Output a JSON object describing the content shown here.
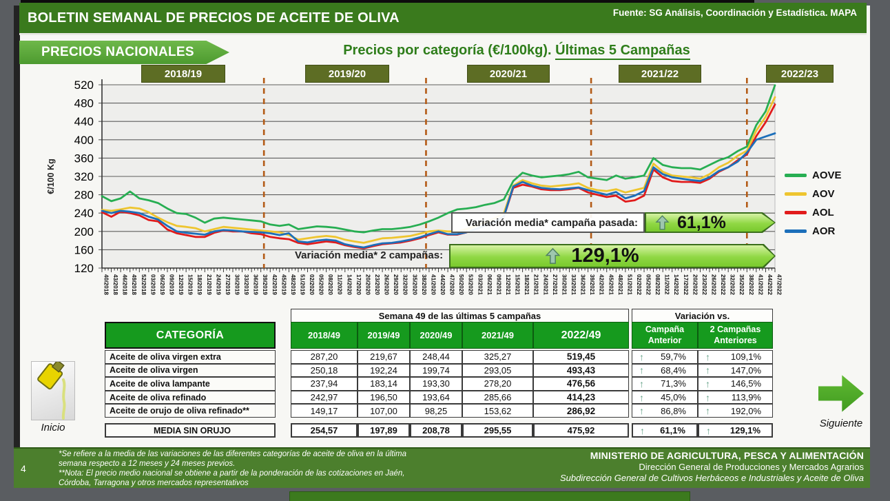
{
  "header": {
    "title": "BOLETIN SEMANAL DE PRECIOS DE ACEITE DE OLIVA",
    "source": "Fuente: SG Análisis, Coordinación y Estadística. MAPA",
    "banner": "PRECIOS NACIONALES",
    "chart_title_main": "Precios por categoría (€/100kg). ",
    "chart_title_underlined": "Últimas 5 Campañas"
  },
  "chart_data": {
    "type": "line",
    "title": "Precios por categoría (€/100kg). Últimas 5 Campañas",
    "ylabel": "€/100 Kg",
    "ylim": [
      120,
      520
    ],
    "ytick_step": 40,
    "grid": true,
    "legend_position": "right",
    "campaigns": [
      "2018/19",
      "2019/20",
      "2020/21",
      "2021/22",
      "2022/23"
    ],
    "campaign_boundaries_index": [
      17.33,
      34.67,
      52.33,
      69.0
    ],
    "x_labels": [
      "40/2018",
      "43/2018",
      "46/2018",
      "49/2018",
      "52/2018",
      "03/2019",
      "06/2019",
      "09/2019",
      "12/2019",
      "15/2019",
      "18/2019",
      "21/2019",
      "24/2019",
      "27/2019",
      "30/2019",
      "33/2019",
      "36/2019",
      "39/2019",
      "42/2019",
      "45/2019",
      "48/2019",
      "51/2019",
      "02/2020",
      "05/2020",
      "08/2020",
      "11/2020",
      "14/2020",
      "17/2020",
      "20/2020",
      "23/2020",
      "26/2020",
      "29/2020",
      "32/2020",
      "35/2020",
      "38/2020",
      "41/2020",
      "44/2020",
      "47/2020",
      "50/2020",
      "53/2020",
      "03/2021",
      "06/2021",
      "09/2021",
      "12/2021",
      "15/2021",
      "18/2021",
      "21/2021",
      "24/2021",
      "27/2021",
      "30/2021",
      "33/2021",
      "36/2021",
      "39/2021",
      "42/2021",
      "45/2021",
      "48/2021",
      "51/2021",
      "02/2022",
      "05/2022",
      "08/2022",
      "11/2022",
      "14/2022",
      "17/2022",
      "20/2022",
      "23/2022",
      "26/2022",
      "29/2022",
      "32/2022",
      "35/2022",
      "38/2022",
      "41/2022",
      "44/2022",
      "47/2022"
    ],
    "series": [
      {
        "name": "AOVE",
        "color": "#27ae52",
        "values": [
          277,
          266,
          272,
          287,
          272,
          268,
          262,
          250,
          240,
          238,
          230,
          219,
          228,
          230,
          228,
          226,
          224,
          222,
          215,
          212,
          215,
          205,
          208,
          211,
          210,
          208,
          204,
          200,
          198,
          202,
          205,
          205,
          207,
          210,
          215,
          222,
          230,
          240,
          248,
          250,
          253,
          258,
          262,
          270,
          310,
          328,
          322,
          318,
          320,
          322,
          325,
          330,
          318,
          315,
          312,
          322,
          315,
          318,
          322,
          360,
          345,
          340,
          338,
          338,
          335,
          345,
          355,
          362,
          375,
          385,
          432,
          462,
          519
        ]
      },
      {
        "name": "AOV",
        "color": "#eec52f",
        "values": [
          247,
          245,
          248,
          252,
          250,
          242,
          230,
          220,
          212,
          210,
          207,
          200,
          205,
          210,
          208,
          206,
          204,
          202,
          200,
          198,
          192,
          182,
          185,
          188,
          190,
          188,
          182,
          178,
          175,
          180,
          185,
          186,
          188,
          190,
          195,
          200,
          202,
          200,
          200,
          205,
          212,
          220,
          228,
          240,
          300,
          312,
          305,
          300,
          298,
          300,
          302,
          305,
          295,
          290,
          288,
          292,
          285,
          290,
          295,
          348,
          330,
          322,
          320,
          318,
          315,
          325,
          340,
          350,
          365,
          376,
          420,
          450,
          493
        ]
      },
      {
        "name": "AOL",
        "color": "#e11b1b",
        "values": [
          242,
          232,
          243,
          240,
          235,
          225,
          222,
          204,
          196,
          192,
          188,
          188,
          197,
          202,
          200,
          200,
          196,
          194,
          188,
          185,
          183,
          175,
          172,
          175,
          178,
          176,
          170,
          166,
          163,
          168,
          172,
          174,
          176,
          180,
          185,
          192,
          198,
          193,
          193,
          198,
          205,
          213,
          220,
          232,
          295,
          302,
          298,
          292,
          290,
          290,
          292,
          295,
          285,
          280,
          275,
          278,
          265,
          268,
          278,
          335,
          318,
          310,
          308,
          308,
          306,
          315,
          330,
          340,
          355,
          368,
          408,
          438,
          477
        ]
      },
      {
        "name": "AOR",
        "color": "#1c6fba",
        "values": [
          245,
          240,
          245,
          243,
          240,
          232,
          226,
          212,
          200,
          197,
          195,
          193,
          200,
          203,
          202,
          200,
          199,
          198,
          196,
          192,
          196,
          178,
          176,
          180,
          182,
          180,
          172,
          168,
          165,
          170,
          174,
          175,
          178,
          182,
          187,
          194,
          200,
          194,
          194,
          198,
          205,
          213,
          220,
          233,
          298,
          308,
          300,
          295,
          293,
          292,
          294,
          296,
          290,
          285,
          280,
          286,
          272,
          278,
          288,
          340,
          325,
          318,
          315,
          312,
          310,
          318,
          332,
          340,
          352,
          372,
          400,
          407,
          414
        ]
      }
    ],
    "annotations": [
      {
        "label": "Variación media* campaña pasada:",
        "value": "61,1%"
      },
      {
        "label": "Variación media* 2 campañas:",
        "value": "129,1%"
      }
    ]
  },
  "table": {
    "span_header_left": "Semana 49 de las últimas 5 campañas",
    "span_header_right": "Variación vs.",
    "category_header": "CATEGORÍA",
    "columns": [
      "2018/49",
      "2019/49",
      "2020/49",
      "2021/49",
      "2022/49"
    ],
    "var_columns": [
      "Campaña Anterior",
      "2 Campañas Anteriores"
    ],
    "rows": [
      {
        "label": "Aceite de oliva virgen extra",
        "values": [
          "287,20",
          "219,67",
          "248,44",
          "325,27",
          "519,45"
        ],
        "var1": "59,7%",
        "var2": "109,1%"
      },
      {
        "label": "Aceite de oliva virgen",
        "values": [
          "250,18",
          "192,24",
          "199,74",
          "293,05",
          "493,43"
        ],
        "var1": "68,4%",
        "var2": "147,0%"
      },
      {
        "label": "Aceite de oliva lampante",
        "values": [
          "237,94",
          "183,14",
          "193,30",
          "278,20",
          "476,56"
        ],
        "var1": "71,3%",
        "var2": "146,5%"
      },
      {
        "label": "Aceite de oliva refinado",
        "values": [
          "242,97",
          "196,50",
          "193,64",
          "285,66",
          "414,23"
        ],
        "var1": "45,0%",
        "var2": "113,9%"
      },
      {
        "label": "Aceite de orujo de oliva refinado**",
        "values": [
          "149,17",
          "107,00",
          "98,25",
          "153,62",
          "286,92"
        ],
        "var1": "86,8%",
        "var2": "192,0%"
      }
    ],
    "summary": {
      "label": "MEDIA SIN ORUJO",
      "values": [
        "254,57",
        "197,89",
        "208,78",
        "295,55",
        "475,92"
      ],
      "var1": "61,1%",
      "var2": "129,1%"
    }
  },
  "nav": {
    "inicio_label": "Inicio",
    "siguiente_label": "Siguiente"
  },
  "footer": {
    "page_number": "4",
    "note_lines": [
      "*Se refiere a la media de las variaciones de las diferentes categorías de aceite de oliva en la última",
      "semana respecto a 12 meses y 24 meses previos.",
      "**Nota: El precio medio nacional se obtiene a partir de la ponderación de las cotizaciones en Jaén,",
      "Córdoba, Tarragona y otros mercados representativos"
    ],
    "ministry_line1": "MINISTERIO DE AGRICULTURA, PESCA Y ALIMENTACIÓN",
    "ministry_line2": "Dirección General de Producciones y Mercados Agrarios",
    "ministry_line3": "Subdirección General de Cultivos Herbáceos e Industriales y Aceite de Oliva"
  },
  "colors": {
    "header_green": "#3a7a1d",
    "table_green": "#169a1e",
    "campaign_olive": "#5d6d24",
    "variation_bar_green": "#90d844",
    "dashed_boundary": "#b35a15",
    "footer_green": "#4c7f2d",
    "up_arrow_green": "#62a186"
  }
}
